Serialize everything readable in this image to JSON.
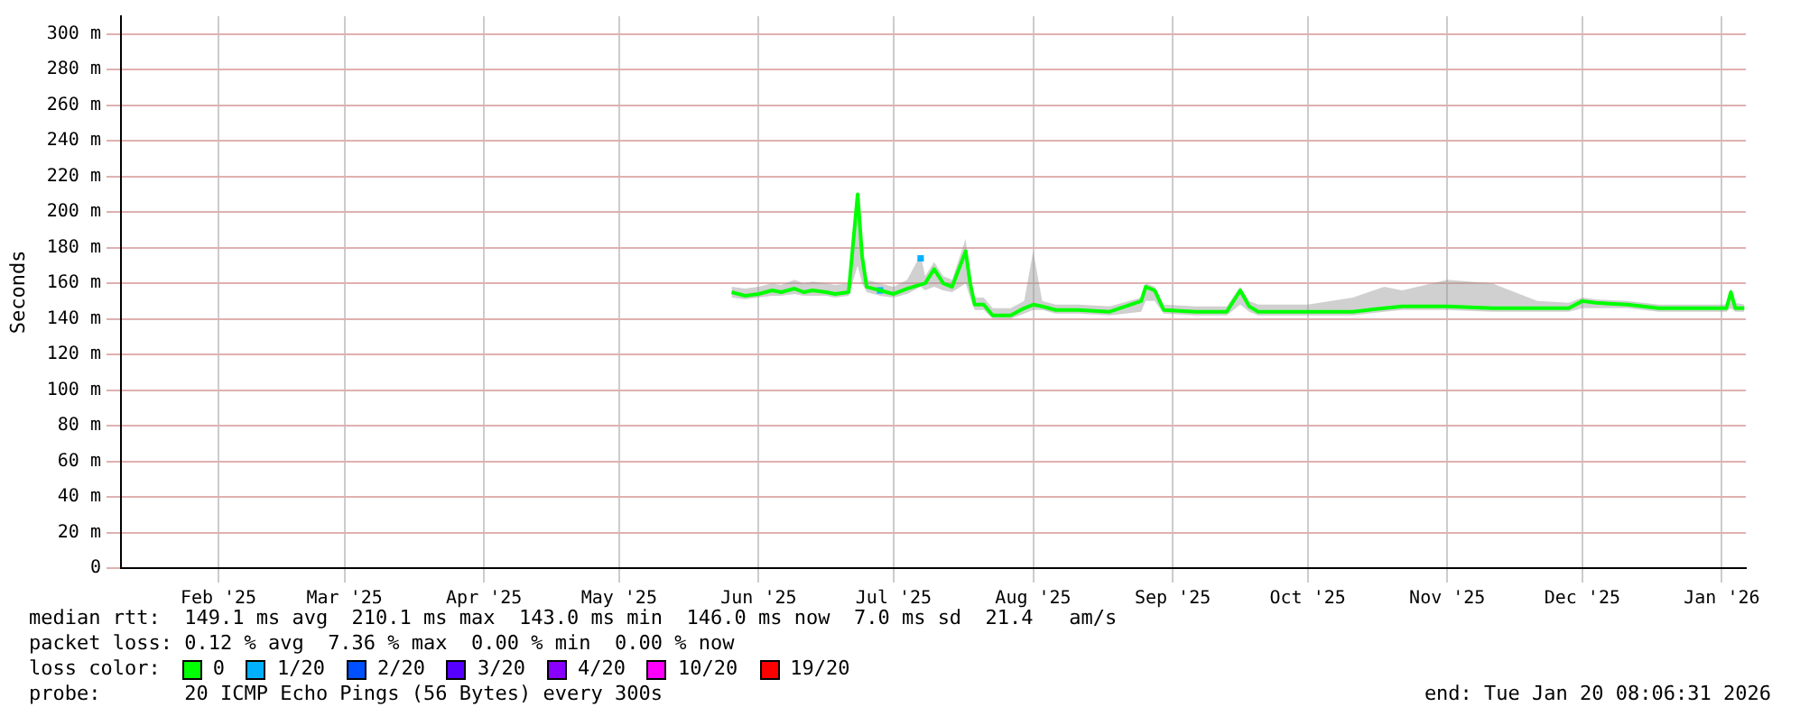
{
  "chart_data": {
    "type": "line",
    "ylabel": "Seconds",
    "legend_title": "loss color:",
    "legend": "bottom",
    "grid": true,
    "marker": "none",
    "xlim": [
      "2025-01-24T08:00",
      "2026-01-20T08:00"
    ],
    "xticks": [
      {
        "value": "2025-02-15",
        "label": "Feb '25"
      },
      {
        "value": "2025-03-15",
        "label": "Mar '25"
      },
      {
        "value": "2025-04-15",
        "label": "Apr '25"
      },
      {
        "value": "2025-05-15",
        "label": "May '25"
      },
      {
        "value": "2025-06-15",
        "label": "Jun '25"
      },
      {
        "value": "2025-07-15",
        "label": "Jul '25"
      },
      {
        "value": "2025-08-15",
        "label": "Aug '25"
      },
      {
        "value": "2025-09-15",
        "label": "Sep '25"
      },
      {
        "value": "2025-10-15",
        "label": "Oct '25"
      },
      {
        "value": "2025-11-15",
        "label": "Nov '25"
      },
      {
        "value": "2025-12-15",
        "label": "Dec '25"
      },
      {
        "value": "2026-01-15",
        "label": "Jan '26"
      }
    ],
    "ylim": [
      0,
      310
    ],
    "yticks": [
      0,
      {
        "value": 20,
        "label": "20 m"
      },
      {
        "value": 40,
        "label": "40 m"
      },
      {
        "value": 60,
        "label": "60 m"
      },
      {
        "value": 80,
        "label": "80 m"
      },
      {
        "value": 100,
        "label": "100 m"
      },
      {
        "value": 120,
        "label": "120 m"
      },
      {
        "value": 140,
        "label": "140 m"
      },
      {
        "value": 160,
        "label": "160 m"
      },
      {
        "value": 180,
        "label": "180 m"
      },
      {
        "value": 200,
        "label": "200 m"
      },
      {
        "value": 220,
        "label": "220 m"
      },
      {
        "value": 240,
        "label": "240 m"
      },
      {
        "value": 260,
        "label": "260 m"
      },
      {
        "value": 280,
        "label": "280 m"
      },
      {
        "value": 300,
        "label": "300 m"
      }
    ],
    "x": [
      "2025-06-09",
      "2025-06-12",
      "2025-06-15",
      "2025-06-18",
      "2025-06-20",
      "2025-06-23",
      "2025-06-25",
      "2025-06-27",
      "2025-06-30",
      "2025-07-02",
      "2025-07-05",
      "2025-07-07",
      "2025-07-08",
      "2025-07-09",
      "2025-07-12",
      "2025-07-15",
      "2025-07-18",
      "2025-07-21",
      "2025-07-22",
      "2025-07-24",
      "2025-07-26",
      "2025-07-28",
      "2025-07-31",
      "2025-08-01",
      "2025-08-02",
      "2025-08-04",
      "2025-08-06",
      "2025-08-10",
      "2025-08-13",
      "2025-08-15",
      "2025-08-17",
      "2025-08-20",
      "2025-08-25",
      "2025-09-01",
      "2025-09-08",
      "2025-09-09",
      "2025-09-11",
      "2025-09-13",
      "2025-09-20",
      "2025-09-27",
      "2025-09-30",
      "2025-10-02",
      "2025-10-04",
      "2025-10-15",
      "2025-10-25",
      "2025-11-01",
      "2025-11-05",
      "2025-11-15",
      "2025-11-25",
      "2025-12-05",
      "2025-12-12",
      "2025-12-15",
      "2025-12-18",
      "2025-12-25",
      "2026-01-01",
      "2026-01-10",
      "2026-01-16",
      "2026-01-17",
      "2026-01-18",
      "2026-01-20"
    ],
    "series": [
      {
        "name": "0",
        "color": "#00ff00",
        "values": [
          155,
          153,
          154,
          156,
          155,
          157,
          155,
          156,
          155,
          154,
          155,
          210,
          175,
          158,
          null,
          154,
          157,
          null,
          160,
          168,
          160,
          158,
          178,
          160,
          148,
          148,
          142,
          142,
          146,
          148,
          147,
          145,
          145,
          144,
          150,
          158,
          156,
          145,
          144,
          144,
          156,
          147,
          144,
          144,
          144,
          146,
          147,
          147,
          146,
          146,
          146,
          150,
          149,
          148,
          146,
          146,
          146,
          155,
          146,
          146
        ],
        "lower": [
          152,
          151,
          152,
          153,
          153,
          154,
          153,
          153,
          153,
          152,
          153,
          170,
          160,
          155,
          153,
          152,
          154,
          158,
          156,
          158,
          156,
          155,
          160,
          152,
          145,
          145,
          140,
          140,
          143,
          145,
          145,
          143,
          143,
          142,
          144,
          150,
          150,
          143,
          142,
          142,
          148,
          144,
          142,
          142,
          142,
          144,
          145,
          145,
          144,
          144,
          144,
          146,
          146,
          146,
          144,
          144,
          144,
          146,
          144,
          144
        ],
        "upper": [
          158,
          157,
          158,
          160,
          159,
          162,
          160,
          161,
          160,
          159,
          160,
          212,
          180,
          162,
          160,
          158,
          162,
          176,
          164,
          172,
          164,
          162,
          185,
          165,
          152,
          152,
          146,
          146,
          150,
          178,
          150,
          148,
          148,
          147,
          152,
          160,
          158,
          148,
          147,
          147,
          158,
          150,
          148,
          148,
          152,
          158,
          156,
          162,
          160,
          150,
          149,
          152,
          151,
          150,
          148,
          148,
          148,
          157,
          149,
          148
        ]
      },
      {
        "name": "1/20",
        "type": "scatter",
        "marker": "square",
        "color": "#00b0ff",
        "x": [
          "2025-07-12",
          "2025-07-21"
        ],
        "values": [
          156,
          174
        ]
      },
      {
        "name": "2/20",
        "color": "#0050ff",
        "values": [
          null,
          null,
          null,
          null,
          null,
          null,
          null,
          null,
          null,
          null,
          null,
          null,
          null,
          null,
          null,
          null,
          null,
          null,
          null,
          null,
          null,
          null,
          null,
          null,
          null,
          null,
          null,
          null,
          null,
          null,
          null,
          null,
          null,
          null,
          null,
          null,
          null,
          null,
          null,
          null,
          null,
          null,
          null,
          null,
          null,
          null,
          null,
          null,
          null,
          null,
          null,
          null,
          null,
          null,
          null,
          null,
          null,
          null,
          null,
          null
        ]
      },
      {
        "name": "3/20",
        "color": "#5500ff",
        "values": [
          null,
          null,
          null,
          null,
          null,
          null,
          null,
          null,
          null,
          null,
          null,
          null,
          null,
          null,
          null,
          null,
          null,
          null,
          null,
          null,
          null,
          null,
          null,
          null,
          null,
          null,
          null,
          null,
          null,
          null,
          null,
          null,
          null,
          null,
          null,
          null,
          null,
          null,
          null,
          null,
          null,
          null,
          null,
          null,
          null,
          null,
          null,
          null,
          null,
          null,
          null,
          null,
          null,
          null,
          null,
          null,
          null,
          null,
          null,
          null
        ]
      },
      {
        "name": "4/20",
        "color": "#8a00ff",
        "values": [
          null,
          null,
          null,
          null,
          null,
          null,
          null,
          null,
          null,
          null,
          null,
          null,
          null,
          null,
          null,
          null,
          null,
          null,
          null,
          null,
          null,
          null,
          null,
          null,
          null,
          null,
          null,
          null,
          null,
          null,
          null,
          null,
          null,
          null,
          null,
          null,
          null,
          null,
          null,
          null,
          null,
          null,
          null,
          null,
          null,
          null,
          null,
          null,
          null,
          null,
          null,
          null,
          null,
          null,
          null,
          null,
          null,
          null,
          null,
          null
        ]
      },
      {
        "name": "10/20",
        "color": "#ff00ff",
        "values": [
          null,
          null,
          null,
          null,
          null,
          null,
          null,
          null,
          null,
          null,
          null,
          null,
          null,
          null,
          null,
          null,
          null,
          null,
          null,
          null,
          null,
          null,
          null,
          null,
          null,
          null,
          null,
          null,
          null,
          null,
          null,
          null,
          null,
          null,
          null,
          null,
          null,
          null,
          null,
          null,
          null,
          null,
          null,
          null,
          null,
          null,
          null,
          null,
          null,
          null,
          null,
          null,
          null,
          null,
          null,
          null,
          null,
          null,
          null,
          null
        ]
      },
      {
        "name": "19/20",
        "color": "#ff0000",
        "values": [
          null,
          null,
          null,
          null,
          null,
          null,
          null,
          null,
          null,
          null,
          null,
          null,
          null,
          null,
          null,
          null,
          null,
          null,
          null,
          null,
          null,
          null,
          null,
          null,
          null,
          null,
          null,
          null,
          null,
          null,
          null,
          null,
          null,
          null,
          null,
          null,
          null,
          null,
          null,
          null,
          null,
          null,
          null,
          null,
          null,
          null,
          null,
          null,
          null,
          null,
          null,
          null,
          null,
          null,
          null,
          null,
          null,
          null,
          null,
          null
        ]
      }
    ],
    "annotations": [
      "median rtt:  149.1 ms avg  210.1 ms max  143.0 ms min  146.0 ms now  7.0 ms sd  21.4   am/s",
      "packet loss: 0.12 % avg  7.36 % max  0.00 % min  0.00 % now",
      "probe:       20 ICMP Echo Pings (56 Bytes) every 300s",
      "end: Tue Jan 20 08:06:31 2026"
    ]
  }
}
